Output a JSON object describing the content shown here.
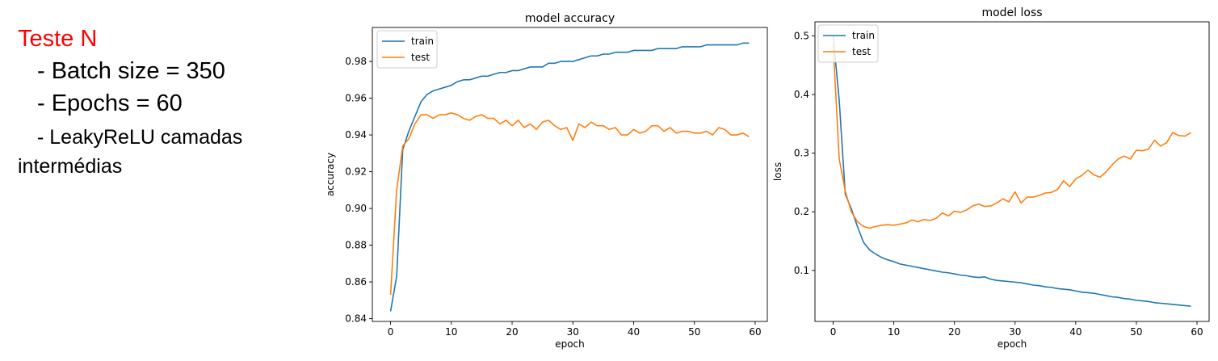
{
  "slide": {
    "title": "Teste N",
    "bullets": [
      "- Batch size =  350",
      "- Epochs = 60",
      "- LeakyReLU camadas",
      "intermédias"
    ]
  },
  "colors": {
    "train": "#1f77b4",
    "test": "#ff7f0e",
    "title": "#ff0000"
  },
  "chart_data": [
    {
      "type": "line",
      "title": "model accuracy",
      "xlabel": "epoch",
      "ylabel": "accuracy",
      "xlim": [
        -3,
        62
      ],
      "ylim": [
        0.8385,
        0.9985
      ],
      "xticks": [
        0,
        10,
        20,
        30,
        40,
        50,
        60
      ],
      "yticks": [
        0.84,
        0.86,
        0.88,
        0.9,
        0.92,
        0.94,
        0.96,
        0.98
      ],
      "ytick_labels": [
        "0.84",
        "0.86",
        "0.88",
        "0.90",
        "0.92",
        "0.94",
        "0.96",
        "0.98"
      ],
      "legend_position": "upper left",
      "series": [
        {
          "name": "train",
          "values": [
            0.844,
            0.863,
            0.932,
            0.942,
            0.95,
            0.958,
            0.962,
            0.964,
            0.965,
            0.966,
            0.967,
            0.969,
            0.97,
            0.97,
            0.971,
            0.972,
            0.972,
            0.973,
            0.974,
            0.974,
            0.975,
            0.975,
            0.976,
            0.977,
            0.977,
            0.977,
            0.979,
            0.979,
            0.98,
            0.98,
            0.98,
            0.981,
            0.982,
            0.983,
            0.983,
            0.984,
            0.984,
            0.985,
            0.985,
            0.985,
            0.986,
            0.986,
            0.986,
            0.986,
            0.987,
            0.987,
            0.987,
            0.987,
            0.988,
            0.988,
            0.988,
            0.988,
            0.989,
            0.989,
            0.989,
            0.989,
            0.989,
            0.989,
            0.99,
            0.99
          ]
        },
        {
          "name": "test",
          "values": [
            0.853,
            0.91,
            0.934,
            0.938,
            0.946,
            0.951,
            0.951,
            0.949,
            0.951,
            0.951,
            0.952,
            0.951,
            0.949,
            0.948,
            0.95,
            0.951,
            0.949,
            0.949,
            0.946,
            0.948,
            0.945,
            0.948,
            0.944,
            0.946,
            0.943,
            0.947,
            0.948,
            0.945,
            0.943,
            0.944,
            0.937,
            0.946,
            0.944,
            0.947,
            0.945,
            0.945,
            0.943,
            0.944,
            0.94,
            0.94,
            0.943,
            0.941,
            0.942,
            0.945,
            0.945,
            0.942,
            0.944,
            0.941,
            0.942,
            0.942,
            0.941,
            0.941,
            0.942,
            0.94,
            0.944,
            0.943,
            0.94,
            0.94,
            0.941,
            0.939
          ]
        }
      ]
    },
    {
      "type": "line",
      "title": "model loss",
      "xlabel": "epoch",
      "ylabel": "loss",
      "xlim": [
        -3,
        62
      ],
      "ylim": [
        0.013,
        0.524
      ],
      "xticks": [
        0,
        10,
        20,
        30,
        40,
        50,
        60
      ],
      "yticks": [
        0.1,
        0.2,
        0.3,
        0.4,
        0.5
      ],
      "ytick_labels": [
        "0.1",
        "0.2",
        "0.3",
        "0.4",
        "0.5"
      ],
      "legend_position": "upper left",
      "series": [
        {
          "name": "train",
          "values": [
            0.5,
            0.39,
            0.23,
            0.205,
            0.175,
            0.148,
            0.135,
            0.128,
            0.122,
            0.118,
            0.115,
            0.111,
            0.109,
            0.107,
            0.105,
            0.103,
            0.101,
            0.099,
            0.097,
            0.096,
            0.094,
            0.092,
            0.091,
            0.089,
            0.088,
            0.089,
            0.085,
            0.083,
            0.082,
            0.081,
            0.08,
            0.079,
            0.077,
            0.075,
            0.074,
            0.072,
            0.071,
            0.069,
            0.068,
            0.067,
            0.065,
            0.063,
            0.062,
            0.061,
            0.059,
            0.057,
            0.055,
            0.054,
            0.052,
            0.051,
            0.049,
            0.048,
            0.047,
            0.045,
            0.044,
            0.043,
            0.042,
            0.041,
            0.04,
            0.039
          ]
        },
        {
          "name": "test",
          "values": [
            0.485,
            0.29,
            0.235,
            0.2,
            0.183,
            0.175,
            0.172,
            0.175,
            0.177,
            0.178,
            0.177,
            0.179,
            0.181,
            0.186,
            0.183,
            0.187,
            0.185,
            0.189,
            0.198,
            0.193,
            0.201,
            0.199,
            0.203,
            0.21,
            0.213,
            0.209,
            0.21,
            0.215,
            0.222,
            0.217,
            0.234,
            0.215,
            0.225,
            0.225,
            0.228,
            0.232,
            0.233,
            0.238,
            0.253,
            0.243,
            0.256,
            0.262,
            0.271,
            0.263,
            0.259,
            0.268,
            0.28,
            0.29,
            0.295,
            0.29,
            0.305,
            0.304,
            0.307,
            0.322,
            0.312,
            0.318,
            0.335,
            0.33,
            0.329,
            0.335
          ]
        }
      ]
    }
  ]
}
